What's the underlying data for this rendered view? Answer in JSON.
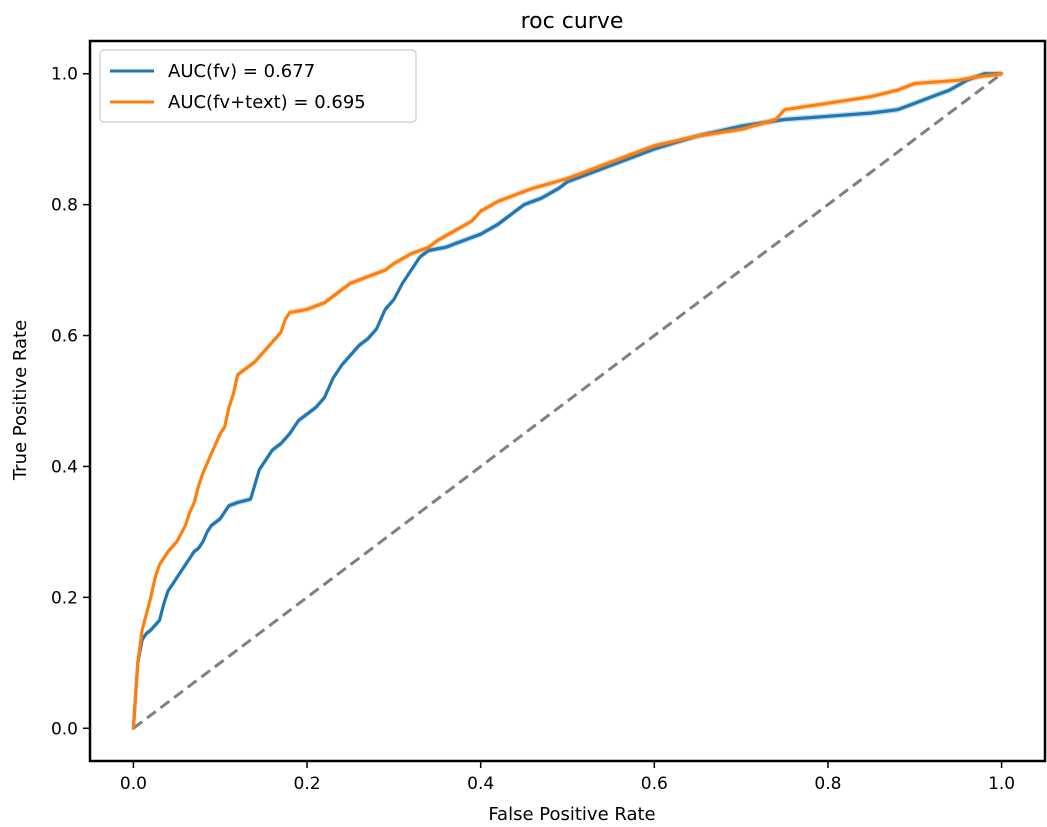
{
  "chart_data": {
    "type": "line",
    "title": "roc curve",
    "xlabel": "False Positive Rate",
    "ylabel": "True Positive Rate",
    "xlim": [
      -0.05,
      1.05
    ],
    "ylim": [
      -0.05,
      1.05
    ],
    "xticks": [
      "0.0",
      "0.2",
      "0.4",
      "0.6",
      "0.8",
      "1.0"
    ],
    "yticks": [
      "0.0",
      "0.2",
      "0.4",
      "0.6",
      "0.8",
      "1.0"
    ],
    "grid": false,
    "legend_position": "top-left",
    "series": [
      {
        "name": "AUC(fv) = 0.677",
        "color": "#1f77b4",
        "band": true,
        "x": [
          0.0,
          0.005,
          0.01,
          0.015,
          0.02,
          0.03,
          0.035,
          0.04,
          0.045,
          0.05,
          0.06,
          0.07,
          0.075,
          0.08,
          0.085,
          0.09,
          0.1,
          0.11,
          0.12,
          0.135,
          0.145,
          0.15,
          0.16,
          0.17,
          0.18,
          0.19,
          0.2,
          0.21,
          0.22,
          0.225,
          0.23,
          0.24,
          0.25,
          0.26,
          0.27,
          0.28,
          0.29,
          0.3,
          0.31,
          0.315,
          0.32,
          0.33,
          0.335,
          0.34,
          0.36,
          0.37,
          0.38,
          0.39,
          0.4,
          0.42,
          0.43,
          0.45,
          0.47,
          0.49,
          0.5,
          0.55,
          0.6,
          0.65,
          0.7,
          0.75,
          0.8,
          0.85,
          0.88,
          0.9,
          0.92,
          0.94,
          0.96,
          0.98,
          1.0
        ],
        "y": [
          0.0,
          0.1,
          0.135,
          0.145,
          0.15,
          0.165,
          0.19,
          0.21,
          0.22,
          0.23,
          0.25,
          0.27,
          0.275,
          0.285,
          0.3,
          0.31,
          0.32,
          0.34,
          0.345,
          0.35,
          0.395,
          0.405,
          0.425,
          0.435,
          0.45,
          0.47,
          0.48,
          0.49,
          0.505,
          0.52,
          0.535,
          0.555,
          0.57,
          0.585,
          0.595,
          0.61,
          0.64,
          0.655,
          0.68,
          0.69,
          0.7,
          0.72,
          0.725,
          0.73,
          0.735,
          0.74,
          0.745,
          0.75,
          0.755,
          0.77,
          0.78,
          0.8,
          0.81,
          0.825,
          0.835,
          0.86,
          0.885,
          0.905,
          0.92,
          0.93,
          0.935,
          0.94,
          0.945,
          0.955,
          0.965,
          0.975,
          0.99,
          1.0,
          1.0
        ]
      },
      {
        "name": "AUC(fv+text) = 0.695",
        "color": "#ff7f0e",
        "band": true,
        "x": [
          0.0,
          0.005,
          0.01,
          0.02,
          0.025,
          0.03,
          0.035,
          0.04,
          0.05,
          0.06,
          0.065,
          0.07,
          0.075,
          0.08,
          0.09,
          0.1,
          0.105,
          0.11,
          0.115,
          0.12,
          0.13,
          0.14,
          0.15,
          0.16,
          0.17,
          0.175,
          0.18,
          0.2,
          0.22,
          0.23,
          0.24,
          0.25,
          0.27,
          0.29,
          0.3,
          0.32,
          0.34,
          0.35,
          0.37,
          0.39,
          0.4,
          0.42,
          0.44,
          0.46,
          0.5,
          0.55,
          0.6,
          0.65,
          0.7,
          0.74,
          0.75,
          0.8,
          0.85,
          0.88,
          0.9,
          0.95,
          0.97,
          0.99,
          1.0
        ],
        "y": [
          0.0,
          0.1,
          0.15,
          0.2,
          0.23,
          0.25,
          0.26,
          0.27,
          0.285,
          0.31,
          0.33,
          0.345,
          0.37,
          0.39,
          0.42,
          0.45,
          0.46,
          0.49,
          0.51,
          0.54,
          0.55,
          0.56,
          0.575,
          0.59,
          0.605,
          0.625,
          0.635,
          0.64,
          0.65,
          0.66,
          0.67,
          0.68,
          0.69,
          0.7,
          0.71,
          0.725,
          0.735,
          0.745,
          0.76,
          0.775,
          0.79,
          0.805,
          0.815,
          0.825,
          0.84,
          0.865,
          0.89,
          0.905,
          0.915,
          0.93,
          0.945,
          0.955,
          0.965,
          0.975,
          0.985,
          0.99,
          0.995,
          0.998,
          1.0
        ]
      }
    ],
    "reference_line": {
      "color": "#808080",
      "dash": true,
      "x": [
        0.0,
        1.0
      ],
      "y": [
        0.0,
        1.0
      ]
    }
  }
}
